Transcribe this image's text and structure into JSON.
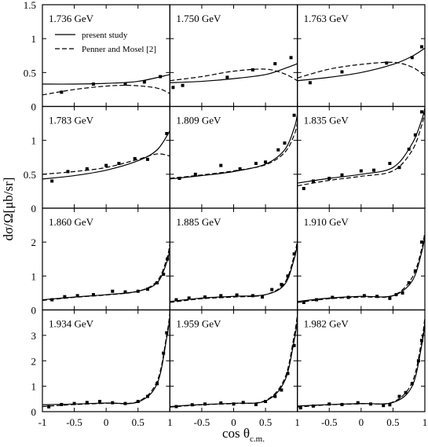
{
  "chart_data": {
    "type": "scatter",
    "layout_rows": 4,
    "layout_cols": 3,
    "xlabel": "cos θ",
    "xlabel_sub": "c.m.",
    "ylabel": "dσ/Ω[μb/sr]",
    "xlim": [
      -1,
      1
    ],
    "xticks": [
      -1,
      -0.5,
      0,
      0.5,
      1
    ],
    "xtick_labels": [
      "-1",
      "-0.5",
      "0",
      "0.5",
      "1"
    ],
    "rows": [
      {
        "ylim": [
          0,
          1.5
        ],
        "yticks": [
          0,
          0.5,
          1,
          1.5
        ],
        "ytick_labels": [
          "0",
          "0.5",
          "1",
          "1.5"
        ]
      },
      {
        "ylim": [
          0,
          1.5
        ],
        "yticks": [
          0,
          0.5,
          1
        ],
        "ytick_labels": [
          "0",
          "0.5",
          "1"
        ]
      },
      {
        "ylim": [
          0,
          3
        ],
        "yticks": [
          0,
          1,
          2
        ],
        "ytick_labels": [
          "0",
          "1",
          "2"
        ]
      },
      {
        "ylim": [
          0,
          4
        ],
        "yticks": [
          0,
          1,
          2,
          3
        ],
        "ytick_labels": [
          "0",
          "1",
          "2",
          "3"
        ]
      }
    ],
    "legend": {
      "location": "top-left of first panel",
      "entries": [
        {
          "label": "present study",
          "style": "solid"
        },
        {
          "label": "Penner and Mosel [2]",
          "style": "dashed"
        }
      ]
    },
    "panels": [
      {
        "label": "1.736 GeV",
        "points": [
          [
            -0.7,
            0.21
          ],
          [
            -0.2,
            0.33
          ],
          [
            0.3,
            0.33
          ],
          [
            0.6,
            0.36
          ],
          [
            0.85,
            0.44
          ]
        ],
        "present": [
          [
            -1,
            0.33
          ],
          [
            -0.5,
            0.33
          ],
          [
            0,
            0.34
          ],
          [
            0.5,
            0.37
          ],
          [
            1,
            0.47
          ]
        ],
        "penner": [
          [
            -1,
            0.17
          ],
          [
            -0.5,
            0.25
          ],
          [
            0,
            0.3
          ],
          [
            0.4,
            0.31
          ],
          [
            0.8,
            0.27
          ],
          [
            1,
            0.19
          ]
        ]
      },
      {
        "label": "1.750 GeV",
        "points": [
          [
            -0.95,
            0.28
          ],
          [
            -0.8,
            0.31
          ],
          [
            -0.1,
            0.43
          ],
          [
            0.3,
            0.54
          ],
          [
            0.65,
            0.63
          ],
          [
            0.9,
            0.72
          ]
        ],
        "present": [
          [
            -1,
            0.35
          ],
          [
            -0.5,
            0.37
          ],
          [
            0,
            0.41
          ],
          [
            0.5,
            0.47
          ],
          [
            0.8,
            0.56
          ],
          [
            1,
            0.63
          ]
        ],
        "penner": [
          [
            -1,
            0.38
          ],
          [
            -0.5,
            0.44
          ],
          [
            0,
            0.52
          ],
          [
            0.5,
            0.55
          ],
          [
            0.8,
            0.48
          ],
          [
            1,
            0.38
          ]
        ]
      },
      {
        "label": "1.763 GeV",
        "points": [
          [
            -0.8,
            0.35
          ],
          [
            -0.3,
            0.51
          ],
          [
            0.4,
            0.64
          ],
          [
            0.8,
            0.72
          ],
          [
            0.95,
            0.88
          ]
        ],
        "present": [
          [
            -1,
            0.38
          ],
          [
            -0.5,
            0.43
          ],
          [
            0,
            0.5
          ],
          [
            0.5,
            0.62
          ],
          [
            0.8,
            0.74
          ],
          [
            1,
            0.86
          ]
        ],
        "penner": [
          [
            -1,
            0.42
          ],
          [
            -0.5,
            0.55
          ],
          [
            0,
            0.62
          ],
          [
            0.5,
            0.65
          ],
          [
            0.8,
            0.58
          ],
          [
            1,
            0.45
          ]
        ]
      },
      {
        "label": "1.783 GeV",
        "points": [
          [
            -0.85,
            0.4
          ],
          [
            -0.6,
            0.54
          ],
          [
            -0.3,
            0.58
          ],
          [
            0,
            0.63
          ],
          [
            0.2,
            0.66
          ],
          [
            0.45,
            0.73
          ],
          [
            0.65,
            0.72
          ],
          [
            0.95,
            1.1
          ]
        ],
        "present": [
          [
            -1,
            0.43
          ],
          [
            -0.5,
            0.48
          ],
          [
            0,
            0.56
          ],
          [
            0.5,
            0.7
          ],
          [
            0.8,
            0.86
          ],
          [
            1,
            1.14
          ]
        ],
        "penner": [
          [
            -1,
            0.5
          ],
          [
            -0.5,
            0.54
          ],
          [
            0,
            0.6
          ],
          [
            0.5,
            0.72
          ],
          [
            0.8,
            0.8
          ],
          [
            1,
            0.77
          ]
        ]
      },
      {
        "label": "1.809 GeV",
        "points": [
          [
            -0.85,
            0.44
          ],
          [
            -0.6,
            0.5
          ],
          [
            -0.2,
            0.63
          ],
          [
            0.1,
            0.58
          ],
          [
            0.35,
            0.66
          ],
          [
            0.5,
            0.68
          ],
          [
            0.7,
            0.86
          ],
          [
            0.8,
            0.96
          ],
          [
            0.95,
            1.37
          ]
        ],
        "present": [
          [
            -1,
            0.43
          ],
          [
            -0.5,
            0.48
          ],
          [
            0,
            0.54
          ],
          [
            0.5,
            0.65
          ],
          [
            0.8,
            0.86
          ],
          [
            0.95,
            1.18
          ],
          [
            1,
            1.38
          ]
        ],
        "penner": [
          [
            -1,
            0.44
          ],
          [
            -0.5,
            0.49
          ],
          [
            0,
            0.55
          ],
          [
            0.5,
            0.64
          ],
          [
            0.8,
            0.82
          ],
          [
            0.95,
            1.08
          ],
          [
            1,
            1.26
          ]
        ]
      },
      {
        "label": "1.835 GeV",
        "points": [
          [
            -0.9,
            0.29
          ],
          [
            -0.75,
            0.4
          ],
          [
            -0.5,
            0.44
          ],
          [
            -0.3,
            0.49
          ],
          [
            0,
            0.55
          ],
          [
            0.2,
            0.56
          ],
          [
            0.45,
            0.66
          ],
          [
            0.6,
            0.6
          ],
          [
            0.75,
            0.87
          ],
          [
            0.85,
            1.08
          ],
          [
            0.95,
            1.42
          ]
        ],
        "present": [
          [
            -1,
            0.37
          ],
          [
            -0.5,
            0.44
          ],
          [
            0,
            0.5
          ],
          [
            0.5,
            0.6
          ],
          [
            0.8,
            0.95
          ],
          [
            0.95,
            1.3
          ],
          [
            1,
            1.48
          ]
        ],
        "penner": [
          [
            -1,
            0.33
          ],
          [
            -0.5,
            0.41
          ],
          [
            0,
            0.47
          ],
          [
            0.5,
            0.55
          ],
          [
            0.8,
            0.85
          ],
          [
            0.95,
            1.22
          ],
          [
            1,
            1.42
          ]
        ]
      },
      {
        "label": "1.860 GeV",
        "points": [
          [
            -0.85,
            0.3
          ],
          [
            -0.65,
            0.39
          ],
          [
            -0.45,
            0.42
          ],
          [
            -0.2,
            0.45
          ],
          [
            0.1,
            0.55
          ],
          [
            0.3,
            0.53
          ],
          [
            0.5,
            0.55
          ],
          [
            0.65,
            0.61
          ],
          [
            0.8,
            0.8
          ],
          [
            0.9,
            1.05
          ],
          [
            0.96,
            1.5
          ]
        ],
        "present": [
          [
            -1,
            0.3
          ],
          [
            -0.5,
            0.38
          ],
          [
            0,
            0.45
          ],
          [
            0.5,
            0.55
          ],
          [
            0.8,
            0.8
          ],
          [
            0.95,
            1.4
          ],
          [
            1,
            1.8
          ]
        ],
        "penner": [
          [
            -1,
            0.28
          ],
          [
            -0.5,
            0.37
          ],
          [
            0,
            0.44
          ],
          [
            0.5,
            0.55
          ],
          [
            0.8,
            0.85
          ],
          [
            0.95,
            1.5
          ],
          [
            1,
            1.95
          ]
        ]
      },
      {
        "label": "1.885 GeV",
        "points": [
          [
            -0.9,
            0.3
          ],
          [
            -0.7,
            0.35
          ],
          [
            -0.45,
            0.38
          ],
          [
            -0.2,
            0.42
          ],
          [
            0.05,
            0.44
          ],
          [
            0.3,
            0.42
          ],
          [
            0.45,
            0.38
          ],
          [
            0.6,
            0.6
          ],
          [
            0.75,
            0.75
          ],
          [
            0.85,
            1.0
          ],
          [
            0.95,
            1.65
          ]
        ],
        "present": [
          [
            -1,
            0.25
          ],
          [
            -0.5,
            0.35
          ],
          [
            0,
            0.4
          ],
          [
            0.5,
            0.45
          ],
          [
            0.8,
            0.75
          ],
          [
            0.95,
            1.5
          ],
          [
            1,
            1.95
          ]
        ],
        "penner": [
          [
            -1,
            0.22
          ],
          [
            -0.5,
            0.33
          ],
          [
            0,
            0.38
          ],
          [
            0.5,
            0.45
          ],
          [
            0.8,
            0.8
          ],
          [
            0.95,
            1.6
          ],
          [
            1,
            2.05
          ]
        ]
      },
      {
        "label": "1.910 GeV",
        "points": [
          [
            -0.9,
            0.22
          ],
          [
            -0.7,
            0.3
          ],
          [
            -0.45,
            0.37
          ],
          [
            -0.2,
            0.37
          ],
          [
            0.05,
            0.42
          ],
          [
            0.25,
            0.4
          ],
          [
            0.45,
            0.34
          ],
          [
            0.55,
            0.45
          ],
          [
            0.65,
            0.5
          ],
          [
            0.75,
            0.8
          ],
          [
            0.85,
            1.15
          ],
          [
            0.95,
            2.0
          ]
        ],
        "present": [
          [
            -1,
            0.25
          ],
          [
            -0.5,
            0.35
          ],
          [
            0,
            0.4
          ],
          [
            0.5,
            0.42
          ],
          [
            0.8,
            0.85
          ],
          [
            0.95,
            1.7
          ],
          [
            1,
            2.2
          ]
        ],
        "penner": [
          [
            -1,
            0.22
          ],
          [
            -0.5,
            0.33
          ],
          [
            0,
            0.38
          ],
          [
            0.5,
            0.42
          ],
          [
            0.8,
            0.95
          ],
          [
            0.95,
            1.8
          ],
          [
            1,
            2.3
          ]
        ]
      },
      {
        "label": "1.934 GeV",
        "points": [
          [
            -0.9,
            0.19
          ],
          [
            -0.7,
            0.28
          ],
          [
            -0.5,
            0.32
          ],
          [
            -0.3,
            0.36
          ],
          [
            -0.1,
            0.4
          ],
          [
            0.1,
            0.35
          ],
          [
            0.3,
            0.32
          ],
          [
            0.5,
            0.4
          ],
          [
            0.65,
            0.6
          ],
          [
            0.8,
            1.1
          ],
          [
            0.9,
            2.3
          ],
          [
            0.95,
            3.1
          ]
        ],
        "present": [
          [
            -1,
            0.27
          ],
          [
            -0.5,
            0.3
          ],
          [
            0,
            0.34
          ],
          [
            0.5,
            0.38
          ],
          [
            0.8,
            1.1
          ],
          [
            0.95,
            2.9
          ],
          [
            1,
            3.7
          ]
        ],
        "penner": [
          [
            -1,
            0.2
          ],
          [
            -0.5,
            0.28
          ],
          [
            0,
            0.33
          ],
          [
            0.5,
            0.4
          ],
          [
            0.8,
            1.2
          ],
          [
            0.95,
            3.0
          ],
          [
            1,
            3.9
          ]
        ]
      },
      {
        "label": "1.959 GeV",
        "points": [
          [
            -0.9,
            0.2
          ],
          [
            -0.65,
            0.27
          ],
          [
            -0.45,
            0.3
          ],
          [
            -0.2,
            0.34
          ],
          [
            0,
            0.3
          ],
          [
            0.15,
            0.36
          ],
          [
            0.35,
            0.28
          ],
          [
            0.5,
            0.4
          ],
          [
            0.65,
            0.6
          ],
          [
            0.75,
            0.85
          ],
          [
            0.85,
            1.5
          ],
          [
            0.95,
            2.6
          ]
        ],
        "present": [
          [
            -1,
            0.2
          ],
          [
            -0.5,
            0.28
          ],
          [
            0,
            0.33
          ],
          [
            0.5,
            0.42
          ],
          [
            0.8,
            1.2
          ],
          [
            0.95,
            2.8
          ],
          [
            1,
            3.6
          ]
        ],
        "penner": [
          [
            -1,
            0.18
          ],
          [
            -0.5,
            0.27
          ],
          [
            0,
            0.32
          ],
          [
            0.5,
            0.44
          ],
          [
            0.8,
            1.3
          ],
          [
            0.95,
            3.0
          ],
          [
            1,
            3.8
          ]
        ]
      },
      {
        "label": "1.982 GeV",
        "points": [
          [
            -0.95,
            0.15
          ],
          [
            -0.75,
            0.22
          ],
          [
            -0.5,
            0.3
          ],
          [
            -0.3,
            0.28
          ],
          [
            -0.05,
            0.35
          ],
          [
            0.15,
            0.3
          ],
          [
            0.35,
            0.24
          ],
          [
            0.45,
            0.27
          ],
          [
            0.6,
            0.6
          ],
          [
            0.7,
            0.75
          ],
          [
            0.8,
            1.1
          ],
          [
            0.9,
            2.0
          ],
          [
            0.95,
            2.8
          ]
        ],
        "present": [
          [
            -1,
            0.22
          ],
          [
            -0.5,
            0.28
          ],
          [
            0,
            0.32
          ],
          [
            0.5,
            0.36
          ],
          [
            0.8,
            1.0
          ],
          [
            0.95,
            2.6
          ],
          [
            1,
            3.5
          ]
        ],
        "penner": [
          [
            -1,
            0.18
          ],
          [
            -0.5,
            0.27
          ],
          [
            0,
            0.31
          ],
          [
            0.5,
            0.38
          ],
          [
            0.8,
            1.15
          ],
          [
            0.95,
            2.8
          ],
          [
            1,
            3.7
          ]
        ]
      }
    ]
  }
}
